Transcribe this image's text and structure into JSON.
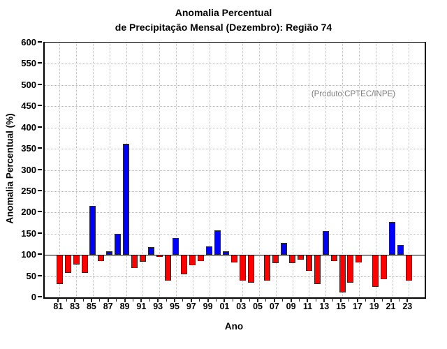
{
  "page": {
    "background": "#ffffff"
  },
  "chart_data": {
    "type": "bar",
    "title": [
      "Anomalia Percentual",
      "de Precipitação Mensal (Dezembro): Região 74"
    ],
    "ylabel": "Anomalia Percentual (%)",
    "xlabel": "Ano",
    "annotation": "(Produto:CPTEC/INPE)",
    "ylim": [
      0,
      600
    ],
    "ytick_step": 50,
    "baseline": 100,
    "grid": "dotted",
    "legend_position": "none",
    "bar_color_above": "#0000ff",
    "bar_color_below": "#ff0000",
    "xtick_labeled_every": 2,
    "categories": [
      "81",
      "82",
      "83",
      "84",
      "85",
      "86",
      "87",
      "88",
      "89",
      "90",
      "91",
      "92",
      "93",
      "94",
      "95",
      "96",
      "97",
      "98",
      "99",
      "00",
      "01",
      "02",
      "03",
      "04",
      "05",
      "06",
      "07",
      "08",
      "09",
      "10",
      "11",
      "12",
      "13",
      "14",
      "15",
      "16",
      "17",
      "18",
      "19",
      "20",
      "21",
      "22",
      "23"
    ],
    "values": [
      32,
      57,
      78,
      58,
      215,
      85,
      108,
      150,
      362,
      69,
      83,
      119,
      95,
      40,
      140,
      55,
      76,
      86,
      120,
      157,
      108,
      82,
      39,
      34,
      100,
      39,
      80,
      129,
      81,
      88,
      62,
      31,
      156,
      86,
      12,
      35,
      82,
      100,
      24,
      42,
      178,
      124,
      40
    ]
  }
}
